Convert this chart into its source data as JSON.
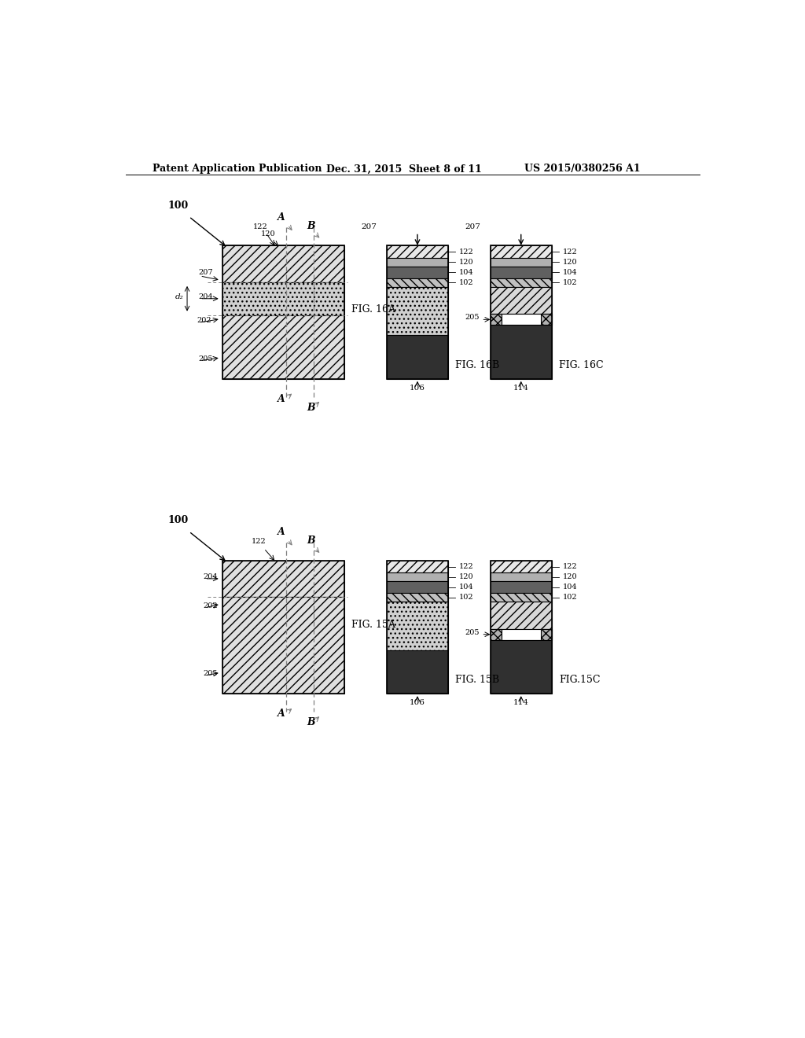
{
  "header_left": "Patent Application Publication",
  "header_mid": "Dec. 31, 2015  Sheet 8 of 11",
  "header_right": "US 2015/0380256 A1",
  "bg_color": "#ffffff",
  "row1": {
    "figA_label": "FIG. 16A",
    "figB_label": "FIG. 16B",
    "figC_label": "FIG. 16C"
  },
  "row2": {
    "figA_label": "FIG. 15A",
    "figB_label": "FIG. 15B",
    "figC_label": "FIG.15C"
  }
}
